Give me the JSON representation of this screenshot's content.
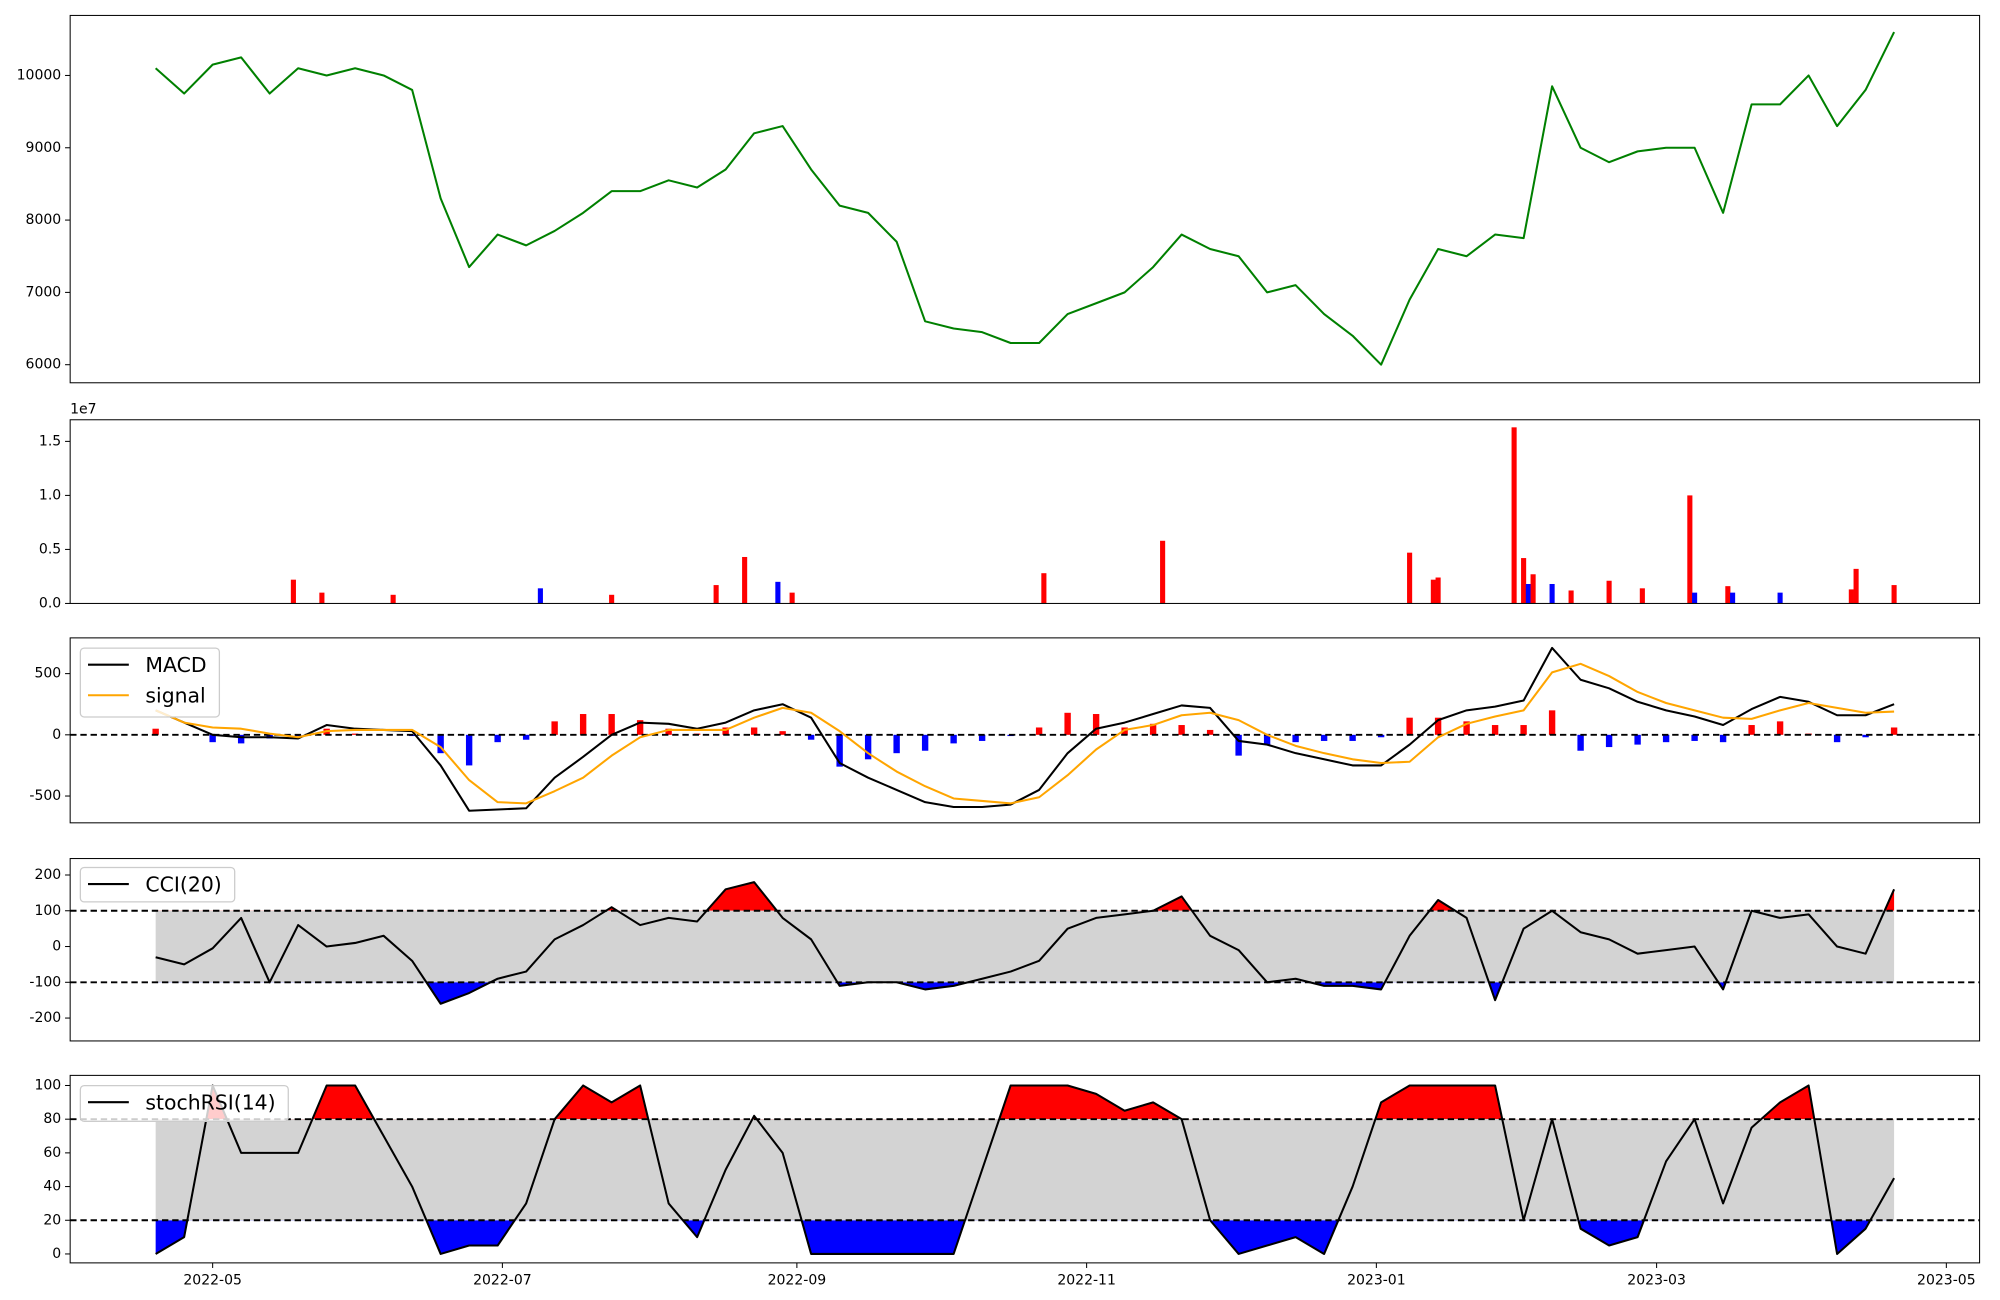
{
  "chart_data": [
    {
      "type": "line",
      "x": [
        -12,
        -6,
        0,
        6,
        12,
        18,
        24,
        30,
        36,
        42,
        48,
        54,
        60,
        66,
        72,
        78,
        84,
        90,
        96,
        102,
        108,
        114,
        120,
        126,
        132,
        138,
        144,
        150,
        156,
        162,
        168,
        174,
        180,
        186,
        192,
        198,
        204,
        210,
        216,
        222,
        228,
        234,
        240,
        246,
        252,
        258,
        264,
        270,
        276,
        282,
        288,
        294,
        300,
        306,
        312,
        318,
        324,
        330,
        336,
        342,
        348,
        354
      ],
      "values": [
        10100,
        9750,
        10150,
        10250,
        9750,
        10100,
        10000,
        10100,
        10000,
        9800,
        8300,
        7350,
        7800,
        7650,
        7850,
        8100,
        8400,
        8400,
        8550,
        8450,
        8700,
        9200,
        9300,
        8700,
        8200,
        8100,
        7700,
        6600,
        6500,
        6450,
        6300,
        6300,
        6700,
        6850,
        7000,
        7350,
        7800,
        7600,
        7500,
        7000,
        7100,
        6700,
        6400,
        6000,
        6900,
        7600,
        7500,
        7800,
        7750,
        9850,
        9000,
        8800,
        8950,
        9000,
        9000,
        8100,
        9600,
        9600,
        10000,
        9300,
        9800,
        10600
      ],
      "color": "#008000",
      "xlim": [
        -30,
        372
      ],
      "ylim": [
        5750,
        10830
      ],
      "yticks": [
        6000,
        7000,
        8000,
        9000,
        10000
      ]
    },
    {
      "type": "bar",
      "x": [
        17,
        23,
        38,
        69,
        84,
        106,
        112,
        119,
        122,
        175,
        200,
        252,
        257,
        258,
        274,
        276,
        277,
        278,
        282,
        286,
        294,
        301,
        311,
        312,
        319,
        320,
        330,
        345,
        346,
        354
      ],
      "values": [
        2200000,
        1000000,
        800000,
        1400000,
        800000,
        1700000,
        4300000,
        2000000,
        1000000,
        2800000,
        5800000,
        4700000,
        2200000,
        2400000,
        16300000,
        4200000,
        1800000,
        2700000,
        1800000,
        1200000,
        2100000,
        1400000,
        10000000,
        1000000,
        1600000,
        1000000,
        1000000,
        1300000,
        3200000,
        1700000
      ],
      "colors": [
        "red",
        "red",
        "red",
        "blue",
        "red",
        "red",
        "red",
        "blue",
        "red",
        "red",
        "red",
        "red",
        "red",
        "red",
        "red",
        "red",
        "blue",
        "red",
        "blue",
        "red",
        "red",
        "red",
        "red",
        "blue",
        "red",
        "blue",
        "blue",
        "red",
        "red",
        "red"
      ],
      "xlim": [
        -30,
        372
      ],
      "ylim": [
        0,
        17000000
      ],
      "yticks": [
        {
          "value": 0,
          "label": "0.0"
        },
        {
          "value": 5000000,
          "label": "0.5"
        },
        {
          "value": 10000000,
          "label": "1.0"
        },
        {
          "value": 15000000,
          "label": "1.5"
        }
      ],
      "offset_label": "1e7"
    },
    {
      "type": "line",
      "x": [
        -12,
        -6,
        0,
        6,
        12,
        18,
        24,
        30,
        36,
        42,
        48,
        54,
        60,
        66,
        72,
        78,
        84,
        90,
        96,
        102,
        108,
        114,
        120,
        126,
        132,
        138,
        144,
        150,
        156,
        162,
        168,
        174,
        180,
        186,
        192,
        198,
        204,
        210,
        216,
        222,
        228,
        234,
        240,
        246,
        252,
        258,
        264,
        270,
        276,
        282,
        288,
        294,
        300,
        306,
        312,
        318,
        324,
        330,
        336,
        342,
        348,
        354
      ],
      "series": [
        {
          "name": "MACD",
          "color": "#000000",
          "values": [
            200,
            100,
            0,
            -20,
            -20,
            -30,
            80,
            50,
            40,
            30,
            -250,
            -620,
            -610,
            -600,
            -350,
            -180,
            0,
            100,
            90,
            50,
            100,
            200,
            250,
            140,
            -230,
            -350,
            -450,
            -550,
            -590,
            -590,
            -570,
            -450,
            -150,
            50,
            100,
            170,
            240,
            220,
            -50,
            -80,
            -150,
            -200,
            -250,
            -250,
            -80,
            120,
            200,
            230,
            280,
            710,
            450,
            380,
            270,
            200,
            150,
            80,
            210,
            310,
            270,
            160,
            160,
            250
          ]
        },
        {
          "name": "signal",
          "color": "#ffa500",
          "values": [
            200,
            100,
            60,
            50,
            10,
            -20,
            30,
            40,
            40,
            40,
            -100,
            -370,
            -550,
            -560,
            -460,
            -350,
            -170,
            -20,
            40,
            40,
            40,
            140,
            220,
            180,
            30,
            -150,
            -300,
            -420,
            -520,
            -540,
            -560,
            -510,
            -330,
            -120,
            40,
            80,
            160,
            180,
            120,
            0,
            -90,
            -150,
            -200,
            -230,
            -220,
            -20,
            90,
            150,
            200,
            510,
            580,
            480,
            350,
            260,
            200,
            140,
            130,
            200,
            260,
            220,
            180,
            190
          ]
        }
      ],
      "histogram": {
        "values": [
          50,
          0,
          -60,
          -70,
          -30,
          -10,
          50,
          10,
          0,
          -10,
          -150,
          -250,
          -60,
          -40,
          110,
          170,
          170,
          120,
          50,
          10,
          60,
          60,
          30,
          -40,
          -260,
          -200,
          -150,
          -130,
          -70,
          -50,
          -10,
          60,
          180,
          170,
          60,
          90,
          80,
          40,
          -170,
          -80,
          -60,
          -50,
          -50,
          -20,
          140,
          140,
          110,
          80,
          80,
          200,
          -130,
          -100,
          -80,
          -60,
          -50,
          -60,
          80,
          110,
          10,
          -60,
          -20,
          60
        ],
        "positive_color": "red",
        "negative_color": "blue"
      },
      "hlines": [
        0
      ],
      "legend": "upper left",
      "xlim": [
        -30,
        372
      ],
      "ylim": [
        -719,
        792
      ],
      "yticks": [
        -500,
        0,
        500
      ]
    },
    {
      "type": "oscillator",
      "x": [
        -12,
        -6,
        0,
        6,
        12,
        18,
        24,
        30,
        36,
        42,
        48,
        54,
        60,
        66,
        72,
        78,
        84,
        90,
        96,
        102,
        108,
        114,
        120,
        126,
        132,
        138,
        144,
        150,
        156,
        162,
        168,
        174,
        180,
        186,
        192,
        198,
        204,
        210,
        216,
        222,
        228,
        234,
        240,
        246,
        252,
        258,
        264,
        270,
        276,
        282,
        288,
        294,
        300,
        306,
        312,
        318,
        324,
        330,
        336,
        342,
        348,
        354
      ],
      "series": [
        {
          "name": "CCI(20)",
          "color": "#000000",
          "values": [
            -30,
            -50,
            -5,
            80,
            -100,
            60,
            0,
            10,
            30,
            -40,
            -160,
            -130,
            -90,
            -70,
            20,
            60,
            110,
            60,
            80,
            70,
            160,
            180,
            80,
            20,
            -110,
            -100,
            -100,
            -120,
            -110,
            -90,
            -70,
            -40,
            50,
            80,
            90,
            100,
            140,
            30,
            -10,
            -100,
            -90,
            -110,
            -110,
            -120,
            30,
            130,
            80,
            -150,
            50,
            100,
            40,
            20,
            -20,
            -10,
            0,
            -120,
            100,
            80,
            90,
            0,
            -20,
            160
          ]
        }
      ],
      "thresholds": [
        -100,
        100
      ],
      "upper_fill": "red",
      "lower_fill": "blue",
      "band_color": "#d3d3d3",
      "legend": "upper left",
      "xlim": [
        -30,
        372
      ],
      "ylim": [
        -264,
        246
      ],
      "yticks": [
        -200,
        -100,
        0,
        100,
        200
      ]
    },
    {
      "type": "oscillator",
      "x": [
        -12,
        -6,
        0,
        6,
        12,
        18,
        24,
        30,
        36,
        42,
        48,
        54,
        60,
        66,
        72,
        78,
        84,
        90,
        96,
        102,
        108,
        114,
        120,
        126,
        132,
        138,
        144,
        150,
        156,
        162,
        168,
        174,
        180,
        186,
        192,
        198,
        204,
        210,
        216,
        222,
        228,
        234,
        240,
        246,
        252,
        258,
        264,
        270,
        276,
        282,
        288,
        294,
        300,
        306,
        312,
        318,
        324,
        330,
        336,
        342,
        348,
        354
      ],
      "series": [
        {
          "name": "stochRSI(14)",
          "color": "#000000",
          "values": [
            0,
            10,
            100,
            60,
            60,
            60,
            100,
            100,
            70,
            40,
            0,
            5,
            5,
            30,
            80,
            100,
            90,
            100,
            30,
            10,
            50,
            82,
            60,
            0,
            0,
            0,
            0,
            0,
            0,
            50,
            100,
            100,
            100,
            95,
            85,
            90,
            80,
            20,
            0,
            5,
            10,
            0,
            40,
            90,
            100,
            100,
            100,
            100,
            20,
            80,
            15,
            5,
            10,
            55,
            80,
            30,
            75,
            90,
            100,
            0,
            15,
            45
          ]
        }
      ],
      "thresholds": [
        20,
        80
      ],
      "upper_fill": "red",
      "lower_fill": "blue",
      "band_color": "#d3d3d3",
      "legend": "upper left",
      "xlim": [
        -30,
        372
      ],
      "ylim": [
        -5.3,
        106
      ],
      "yticks": [
        0,
        20,
        40,
        60,
        80,
        100
      ],
      "xticks": [
        {
          "value": 0,
          "label": "2022-05"
        },
        {
          "value": 61,
          "label": "2022-07"
        },
        {
          "value": 123,
          "label": "2022-09"
        },
        {
          "value": 184,
          "label": "2022-11"
        },
        {
          "value": 245,
          "label": "2023-01"
        },
        {
          "value": 304,
          "label": "2023-03"
        },
        {
          "value": 365,
          "label": "2023-05"
        }
      ]
    }
  ]
}
